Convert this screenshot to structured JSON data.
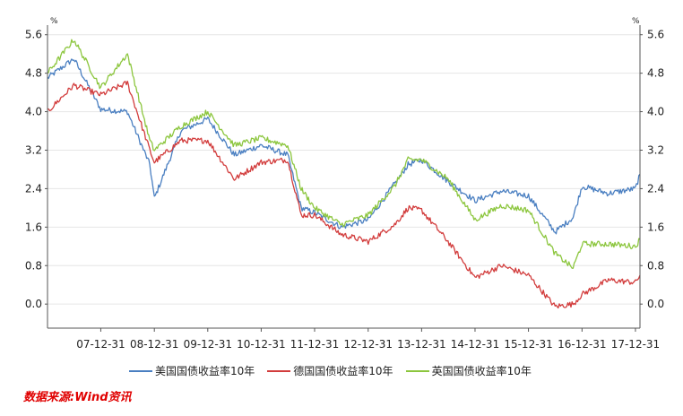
{
  "chart_data": {
    "type": "line",
    "title": "",
    "unit_left": "%",
    "unit_right": "%",
    "ylim": [
      -0.5,
      5.8
    ],
    "yticks": [
      "5.6",
      "4.8",
      "4.0",
      "3.2",
      "2.4",
      "1.6",
      "0.8",
      "0.0"
    ],
    "ytick_values": [
      5.6,
      4.8,
      4.0,
      3.2,
      2.4,
      1.6,
      0.8,
      0.0
    ],
    "x": [
      "2007-01-01",
      "2007-06-30",
      "2007-12-31",
      "2008-06-30",
      "2008-11-30",
      "2008-12-31",
      "2009-06-30",
      "2009-12-31",
      "2010-06-30",
      "2010-12-31",
      "2011-06-30",
      "2011-09-30",
      "2011-12-31",
      "2012-06-30",
      "2012-12-31",
      "2013-06-30",
      "2013-09-30",
      "2013-12-31",
      "2014-06-30",
      "2014-12-31",
      "2015-06-30",
      "2015-12-31",
      "2016-06-30",
      "2016-10-31",
      "2016-12-31",
      "2017-06-30",
      "2017-12-31",
      "2018-01-31"
    ],
    "xticks": [
      "07-12-31",
      "08-12-31",
      "09-12-31",
      "10-12-31",
      "11-12-31",
      "12-12-31",
      "13-12-31",
      "14-12-31",
      "15-12-31",
      "16-12-31",
      "17-12-31"
    ],
    "xtick_dates": [
      "2007-12-31",
      "2008-12-31",
      "2009-12-31",
      "2010-12-31",
      "2011-12-31",
      "2012-12-31",
      "2013-12-31",
      "2014-12-31",
      "2015-12-31",
      "2016-12-31",
      "2017-12-31"
    ],
    "series": [
      {
        "name": "美国国债收益率10年",
        "color": "#4a7fc1",
        "values": [
          4.7,
          5.1,
          4.05,
          4.0,
          2.9,
          2.2,
          3.6,
          3.85,
          3.1,
          3.3,
          3.1,
          2.0,
          1.9,
          1.6,
          1.75,
          2.5,
          2.9,
          3.0,
          2.55,
          2.15,
          2.35,
          2.25,
          1.5,
          1.8,
          2.45,
          2.3,
          2.4,
          2.7
        ]
      },
      {
        "name": "德国国债收益率10年",
        "color": "#d23c3c",
        "values": [
          4.0,
          4.55,
          4.35,
          4.6,
          3.2,
          2.95,
          3.4,
          3.4,
          2.6,
          2.95,
          3.0,
          1.85,
          1.85,
          1.45,
          1.3,
          1.65,
          2.0,
          1.95,
          1.3,
          0.55,
          0.8,
          0.6,
          -0.05,
          0.0,
          0.2,
          0.5,
          0.45,
          0.6
        ]
      },
      {
        "name": "英国国债收益率10年",
        "color": "#8cc63e",
        "values": [
          4.8,
          5.5,
          4.5,
          5.2,
          3.4,
          3.2,
          3.7,
          4.0,
          3.3,
          3.45,
          3.3,
          2.4,
          2.0,
          1.65,
          1.85,
          2.45,
          3.0,
          3.0,
          2.6,
          1.75,
          2.05,
          1.95,
          1.05,
          0.75,
          1.25,
          1.25,
          1.2,
          1.35
        ]
      }
    ]
  },
  "legend": [
    {
      "label": "美国国债收益率10年",
      "color": "#4a7fc1"
    },
    {
      "label": "德国国债收益率10年",
      "color": "#d23c3c"
    },
    {
      "label": "英国国债收益率10年",
      "color": "#8cc63e"
    }
  ],
  "source": "数据来源:Wind资讯",
  "colors": {
    "grid": "#e6e6e6",
    "axis": "#555555"
  }
}
